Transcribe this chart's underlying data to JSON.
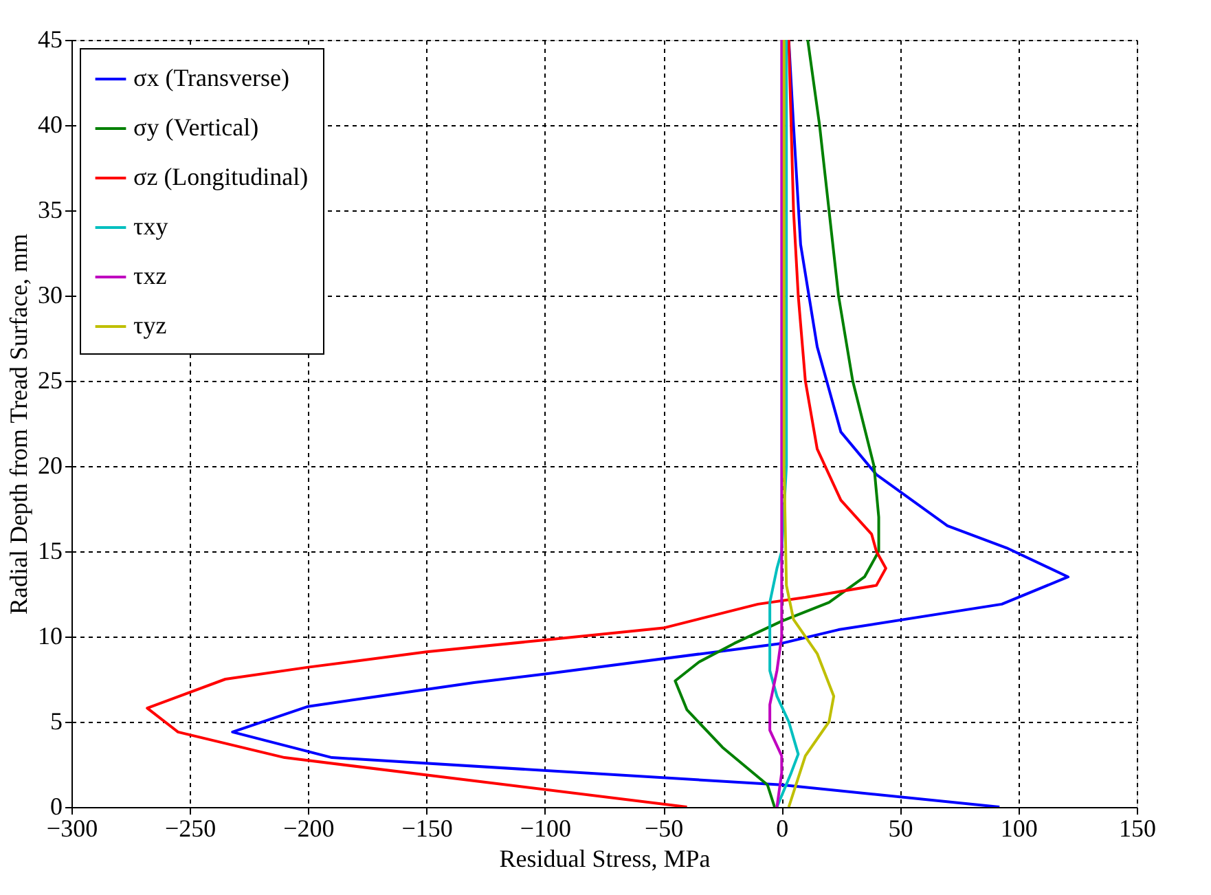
{
  "chart_data": {
    "type": "line",
    "xlabel": "Residual Stress, MPa",
    "ylabel": "Radial Depth from Tread Surface, mm",
    "xlim": [
      -300,
      150
    ],
    "ylim": [
      0,
      45
    ],
    "xticks": [
      -300,
      -250,
      -200,
      -150,
      -100,
      -50,
      0,
      50,
      100,
      150
    ],
    "yticks": [
      0,
      5,
      10,
      15,
      20,
      25,
      30,
      35,
      40,
      45
    ],
    "grid": true,
    "legend": "top left",
    "line_style": "solid",
    "marker": "none",
    "series": [
      {
        "name": "σx (Transverse)",
        "color": "#0000ff",
        "x": [
          92,
          0,
          -190,
          -232,
          -200,
          -130,
          -100,
          0,
          24,
          93,
          121,
          95,
          70,
          40,
          25,
          15,
          8,
          5,
          3
        ],
        "values": [
          0,
          1.3,
          2.9,
          4.4,
          5.9,
          7.3,
          7.8,
          9.6,
          10.4,
          11.9,
          13.5,
          15.2,
          16.5,
          19.5,
          22,
          27,
          33,
          40,
          45
        ]
      },
      {
        "name": "σy (Vertical)",
        "color": "#008000",
        "x": [
          -3,
          -6,
          -25,
          -40,
          -45,
          -35,
          -20,
          0,
          20,
          35,
          41,
          41,
          39,
          30,
          24,
          20,
          16,
          11
        ],
        "values": [
          0,
          1.3,
          3.5,
          5.7,
          7.4,
          8.5,
          9.6,
          10.9,
          12,
          13.5,
          15,
          17,
          20,
          25,
          30,
          35,
          40,
          45
        ]
      },
      {
        "name": "σz (Longitudinal)",
        "color": "#ff0000",
        "x": [
          -40,
          -210,
          -255,
          -268,
          -235,
          -200,
          -150,
          -100,
          -50,
          -10,
          10,
          40,
          44,
          40,
          38,
          25,
          15,
          10,
          7,
          5,
          4,
          3
        ],
        "values": [
          0,
          2.9,
          4.4,
          5.8,
          7.5,
          8.2,
          9.1,
          9.8,
          10.5,
          11.9,
          12.3,
          13,
          14,
          15,
          16,
          18,
          21,
          25,
          30,
          35,
          40,
          45
        ]
      },
      {
        "name": "τxy",
        "color": "#00bfbf",
        "x": [
          -2,
          4,
          7,
          3,
          -2,
          -5,
          -5,
          -5,
          -2,
          0,
          2,
          2,
          2
        ],
        "values": [
          0,
          2,
          3.1,
          5,
          6.5,
          8,
          10,
          12,
          14,
          15,
          20,
          30,
          45
        ]
      },
      {
        "name": "τxz",
        "color": "#bf00bf",
        "x": [
          -2,
          0,
          0,
          -5,
          -5,
          -2,
          0,
          0
        ],
        "values": [
          0,
          2,
          3,
          4.5,
          6,
          8,
          10,
          45
        ]
      },
      {
        "name": "τyz",
        "color": "#bfbf00",
        "x": [
          3,
          10,
          20,
          22,
          15,
          5,
          2,
          1,
          1
        ],
        "values": [
          0,
          3,
          5,
          6.5,
          9,
          11,
          13,
          20,
          45
        ]
      }
    ]
  }
}
